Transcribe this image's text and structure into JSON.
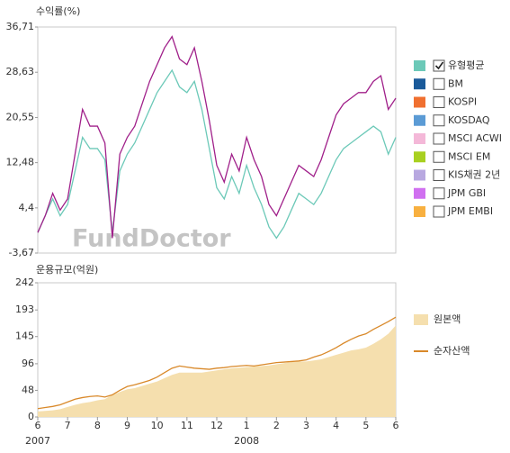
{
  "chart_data": [
    {
      "type": "line",
      "title": "수익률(%)",
      "watermark": "FundDoctor",
      "xlim": [
        0,
        48
      ],
      "ylim": [
        -3.67,
        36.71
      ],
      "yticks": [
        {
          "value": 36.71,
          "label": "36,71"
        },
        {
          "value": 28.63,
          "label": "28,63"
        },
        {
          "value": 20.55,
          "label": "20,55"
        },
        {
          "value": 12.48,
          "label": "12,48"
        },
        {
          "value": 4.4,
          "label": "4,4"
        },
        {
          "value": -3.67,
          "label": "-3,67"
        }
      ],
      "grid": false,
      "series": [
        {
          "color": "#6cc9b8",
          "values": [
            0,
            3,
            6,
            3,
            5,
            11,
            17,
            15,
            15,
            13,
            0,
            11,
            14,
            16,
            19,
            22,
            25,
            27,
            29,
            26,
            25,
            27,
            22,
            15,
            8,
            6,
            10,
            7,
            12,
            8,
            5,
            1,
            -1,
            1,
            4,
            7,
            6,
            5,
            7,
            10,
            13,
            15,
            16,
            17,
            18,
            19,
            18,
            14,
            17
          ]
        },
        {
          "color": "#a0208a",
          "values": [
            0,
            3,
            7,
            4,
            6,
            14,
            22,
            19,
            19,
            16,
            -1,
            14,
            17,
            19,
            23,
            27,
            30,
            33,
            35,
            31,
            30,
            33,
            27,
            20,
            12,
            9,
            14,
            11,
            17,
            13,
            10,
            5,
            3,
            6,
            9,
            12,
            11,
            10,
            13,
            17,
            21,
            23,
            24,
            25,
            25,
            27,
            28,
            22,
            24
          ]
        }
      ],
      "legend": [
        {
          "name": "유형평균",
          "color": "#6cc9b8",
          "checked": true
        },
        {
          "name": "BM",
          "color": "#1a5a9a",
          "checked": false
        },
        {
          "name": "KOSPI",
          "color": "#f07030",
          "checked": false
        },
        {
          "name": "KOSDAQ",
          "color": "#5b9bd5",
          "checked": false
        },
        {
          "name": "MSCI ACWI",
          "color": "#f4b8d8",
          "checked": false
        },
        {
          "name": "MSCI EM",
          "color": "#a8d020",
          "checked": false
        },
        {
          "name": "KIS채권 2년",
          "color": "#b8a8e0",
          "checked": false
        },
        {
          "name": "JPM GBI",
          "color": "#d070f0",
          "checked": false
        },
        {
          "name": "JPM EMBI",
          "color": "#f8b040",
          "checked": false
        }
      ]
    },
    {
      "type": "area",
      "title": "운용규모(억원)",
      "xlim": [
        0,
        48
      ],
      "xticks": [
        {
          "value": 0,
          "label": "6"
        },
        {
          "value": 4,
          "label": "7"
        },
        {
          "value": 8,
          "label": "8"
        },
        {
          "value": 12,
          "label": "9"
        },
        {
          "value": 16,
          "label": "10"
        },
        {
          "value": 20,
          "label": "11"
        },
        {
          "value": 24,
          "label": "12"
        },
        {
          "value": 28,
          "label": "1"
        },
        {
          "value": 32,
          "label": "2"
        },
        {
          "value": 36,
          "label": "3"
        },
        {
          "value": 40,
          "label": "4"
        },
        {
          "value": 44,
          "label": "5"
        },
        {
          "value": 48,
          "label": "6"
        }
      ],
      "year_labels": [
        {
          "value": 0,
          "label": "2007"
        },
        {
          "value": 28,
          "label": "2008"
        }
      ],
      "ylim": [
        0,
        242
      ],
      "yticks": [
        0,
        48,
        96,
        145,
        193,
        242
      ],
      "series": [
        {
          "name": "원본액",
          "kind": "area",
          "color": "#f5dfae",
          "values": [
            10,
            11,
            12,
            14,
            18,
            22,
            25,
            27,
            30,
            32,
            40,
            45,
            50,
            52,
            56,
            60,
            64,
            70,
            76,
            80,
            80,
            80,
            80,
            82,
            84,
            86,
            88,
            89,
            90,
            91,
            92,
            93,
            95,
            97,
            99,
            100,
            100,
            102,
            104,
            108,
            112,
            116,
            120,
            122,
            125,
            132,
            140,
            150,
            165
          ]
        },
        {
          "name": "순자산액",
          "kind": "line",
          "color": "#d9892a",
          "values": [
            15,
            17,
            19,
            22,
            27,
            32,
            35,
            37,
            38,
            36,
            40,
            48,
            55,
            58,
            62,
            66,
            72,
            80,
            88,
            92,
            90,
            88,
            87,
            86,
            88,
            89,
            91,
            92,
            93,
            92,
            94,
            96,
            98,
            99,
            100,
            101,
            103,
            108,
            112,
            118,
            125,
            133,
            140,
            146,
            150,
            158,
            165,
            172,
            180
          ]
        }
      ]
    }
  ]
}
